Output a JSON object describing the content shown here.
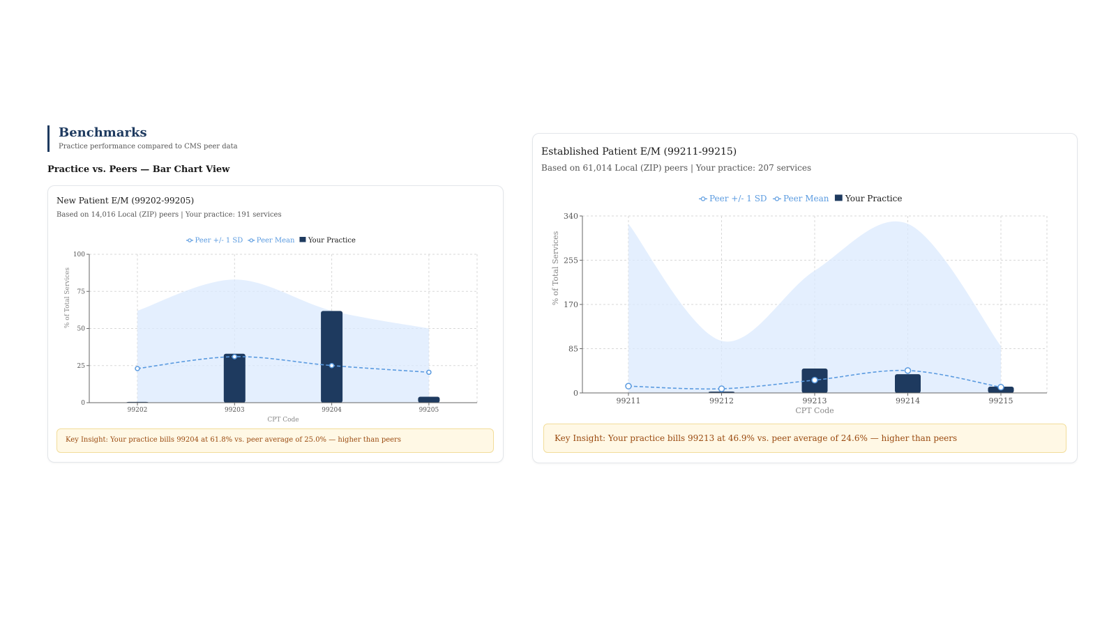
{
  "header": {
    "title": "Benchmarks",
    "subtitle": "Practice performance compared to CMS peer data"
  },
  "section_title": "Practice vs. Peers — Bar Chart View",
  "legend": {
    "sd": "Peer +/- 1 SD",
    "mean": "Peer Mean",
    "practice": "Your Practice"
  },
  "colors": {
    "practice": "#1e3a5f",
    "mean": "#5b9be0",
    "band": "#dbeafe",
    "insight_text": "#9a4a10",
    "insight_bg": "#fff8e5"
  },
  "left_card": {
    "title": "New Patient E/M (99202-99205)",
    "subtitle": "Based on 14,016 Local (ZIP) peers | Your practice: 191 services",
    "insight": "Key Insight: Your practice bills 99204 at 61.8% vs. peer average of 25.0% — higher than peers"
  },
  "right_card": {
    "title": "Established Patient E/M (99211-99215)",
    "subtitle": "Based on 61,014 Local (ZIP) peers | Your practice: 207 services",
    "insight": "Key Insight: Your practice bills 99213 at 46.9% vs. peer average of 24.6% — higher than peers"
  },
  "chart_data": [
    {
      "type": "bar",
      "title": "New Patient E/M (99202-99205)",
      "xlabel": "CPT Code",
      "ylabel": "% of Total Services",
      "ylim": [
        0,
        100
      ],
      "yticks": [
        0,
        25,
        50,
        75,
        100
      ],
      "categories": [
        "99202",
        "99203",
        "99204",
        "99205"
      ],
      "grid": true,
      "legend_position": "top-center",
      "series": [
        {
          "name": "Your Practice",
          "type": "bar",
          "values": [
            0.5,
            33.0,
            61.8,
            4.0
          ]
        },
        {
          "name": "Peer Mean",
          "type": "line",
          "values": [
            23.0,
            31.0,
            25.0,
            20.5
          ]
        },
        {
          "name": "Peer +/- 1 SD",
          "type": "area",
          "lower": [
            0,
            0,
            0,
            0
          ],
          "upper": [
            62,
            83,
            62,
            50
          ]
        }
      ]
    },
    {
      "type": "bar",
      "title": "Established Patient E/M (99211-99215)",
      "xlabel": "CPT Code",
      "ylabel": "% of Total Services",
      "ylim": [
        0,
        340
      ],
      "yticks": [
        0,
        85,
        170,
        255,
        340
      ],
      "categories": [
        "99211",
        "99212",
        "99213",
        "99214",
        "99215"
      ],
      "grid": true,
      "legend_position": "top-center",
      "series": [
        {
          "name": "Your Practice",
          "type": "bar",
          "values": [
            0,
            2.5,
            46.9,
            36.0,
            12.0
          ]
        },
        {
          "name": "Peer Mean",
          "type": "line",
          "values": [
            13.0,
            8.0,
            24.6,
            43.0,
            11.0
          ]
        },
        {
          "name": "Peer +/- 1 SD",
          "type": "area",
          "lower": [
            0,
            0,
            0,
            0,
            0
          ],
          "upper": [
            325,
            100,
            235,
            325,
            90
          ]
        }
      ]
    }
  ]
}
